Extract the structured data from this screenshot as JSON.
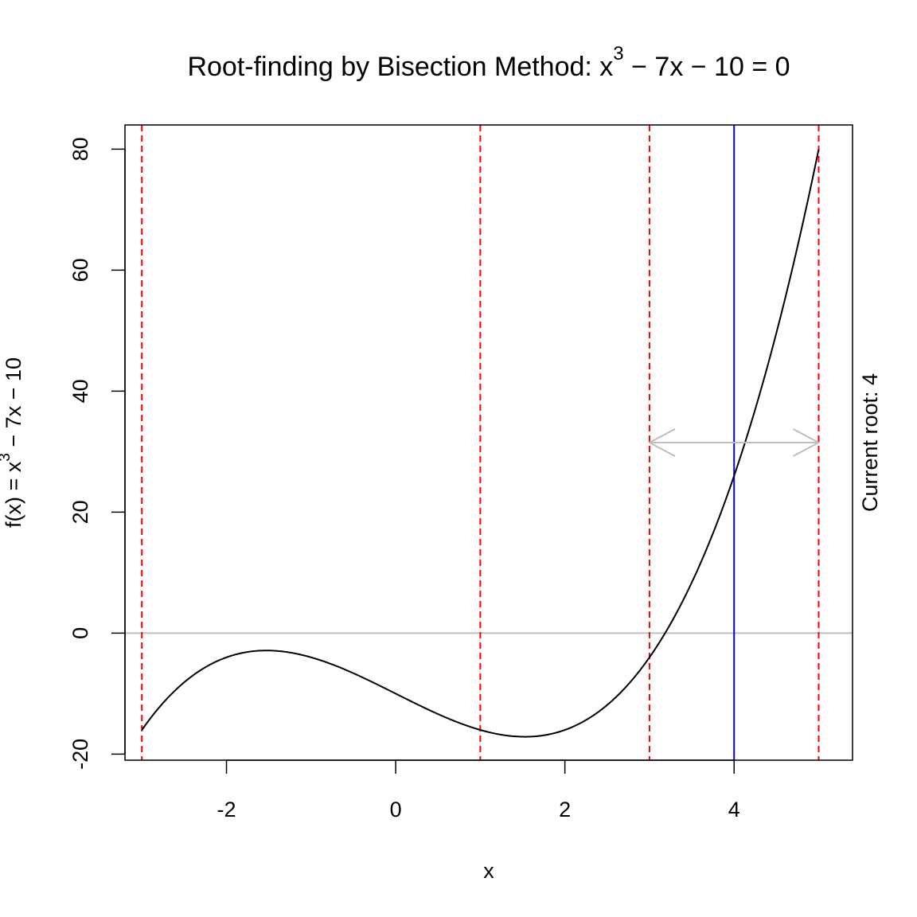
{
  "chart_data": {
    "type": "line",
    "title": {
      "prefix": "Root-finding by Bisection Method: ",
      "base": "x",
      "exponent": "3",
      "suffix": " − 7x − 10 = 0"
    },
    "xlabel": "x",
    "ylabel": {
      "prefix": "f(x) = x",
      "exponent": "3",
      "suffix": " − 7x − 10"
    },
    "right_annotation": "Current root: 4",
    "xlim": [
      -3.2,
      5.4
    ],
    "ylim": [
      -21,
      84
    ],
    "x_ticks": [
      {
        "value": -2,
        "label": "-2"
      },
      {
        "value": 0,
        "label": "0"
      },
      {
        "value": 2,
        "label": "2"
      },
      {
        "value": 4,
        "label": "4"
      }
    ],
    "y_ticks": [
      {
        "value": -20,
        "label": "-20"
      },
      {
        "value": 0,
        "label": "0"
      },
      {
        "value": 20,
        "label": "20"
      },
      {
        "value": 40,
        "label": "40"
      },
      {
        "value": 60,
        "label": "60"
      },
      {
        "value": 80,
        "label": "80"
      }
    ],
    "function": {
      "coefficients": {
        "a3": 1,
        "a1": -7,
        "a0": -10
      },
      "x_range": [
        -3,
        5
      ],
      "color": "#000000"
    },
    "zero_line": {
      "y": 0,
      "color": "#bebebe"
    },
    "bisection_points": [
      -3,
      1,
      3,
      5
    ],
    "bisection_color": "#ff0000",
    "current_root": 4,
    "current_root_color": "#0000ff",
    "interval_arrow": {
      "from": 3,
      "to": 5,
      "y": 31.5,
      "color": "#bebebe"
    },
    "grid": false,
    "legend": "none"
  }
}
